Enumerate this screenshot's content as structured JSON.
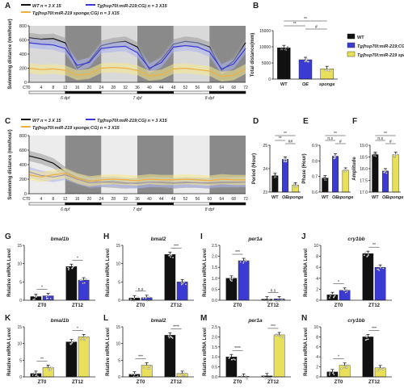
{
  "colors": {
    "wt": "#111111",
    "oe": "#3b3bd4",
    "sponge": "#e8e05a",
    "sponge_line": "#f0b040",
    "shade_light": "#d9d9d9",
    "shade_dark": "#8a8a8a"
  },
  "panel_letters": [
    "A",
    "B",
    "C",
    "D",
    "E",
    "F",
    "G",
    "H",
    "I",
    "J",
    "K",
    "L",
    "M",
    "N"
  ],
  "legend_top": {
    "wt": "WT  n = 3 X 15",
    "oe": "Tg(hsp70l:miR-219;CG)  n = 3 X15",
    "sponge": "Tg(hsp70l:miR-219 sponge;CG)  n = 3 X15"
  },
  "legend_bottom": {
    "wt": "WT  n = 3 X 15",
    "oe": "Tg(hsp70l:miR-219;CG)  n = 3 X15",
    "sponge": "Tg(hsp70l:miR-219 sponge;CG)  n = 3 X15"
  },
  "legend_B": {
    "wt": "WT",
    "oe": "Tg(hsp70l:miR-219;CG)",
    "sponge": "Tg(hsp70l:miR-219 sponge;CG)"
  },
  "ct_label": "CT",
  "time_ticks": [
    "0",
    "4",
    "8",
    "12",
    "16",
    "20",
    "24",
    "28",
    "32",
    "36",
    "40",
    "44",
    "48",
    "52",
    "56",
    "60",
    "64",
    "68",
    "72"
  ],
  "day_labels": [
    "6 dpf",
    "7 dpf",
    "8 dpf"
  ],
  "chart_data": [
    {
      "panel": "A",
      "type": "line",
      "ylabel": "Swimming distance (mm/hour)",
      "ylim": [
        0,
        800
      ],
      "yticks": [
        "0",
        "200",
        "400",
        "600",
        "800"
      ],
      "x": [
        0,
        4,
        8,
        12,
        16,
        20,
        24,
        28,
        32,
        36,
        40,
        44,
        48,
        52,
        56,
        60,
        64,
        68,
        72
      ],
      "series": [
        {
          "name": "WT",
          "values": [
            630,
            610,
            620,
            560,
            200,
            300,
            520,
            560,
            580,
            500,
            180,
            320,
            540,
            580,
            560,
            500,
            170,
            300,
            560
          ]
        },
        {
          "name": "Tg(hsp70l:miR-219;CG)",
          "values": [
            560,
            540,
            530,
            480,
            240,
            280,
            480,
            500,
            510,
            420,
            200,
            280,
            500,
            520,
            500,
            430,
            190,
            260,
            480
          ]
        },
        {
          "name": "Tg(hsp70l:miR-219 sponge;CG)",
          "values": [
            200,
            180,
            190,
            170,
            100,
            120,
            200,
            210,
            200,
            170,
            90,
            110,
            190,
            200,
            180,
            160,
            80,
            100,
            190
          ]
        }
      ]
    },
    {
      "panel": "B",
      "type": "bar",
      "ylabel": "Total distance(mm)",
      "ylim": [
        0,
        15000
      ],
      "yticks": [
        "0",
        "5000",
        "10000",
        "15000"
      ],
      "categories": [
        "WT",
        "OE",
        "sponge"
      ],
      "values": [
        9700,
        6000,
        3200
      ],
      "sig": [
        "**",
        "**",
        "#"
      ]
    },
    {
      "panel": "C",
      "type": "line",
      "ylabel": "Swimming distance (mm/hour)",
      "ylim": [
        0,
        800
      ],
      "yticks": [
        "0",
        "200",
        "400",
        "600",
        "800"
      ],
      "x": [
        0,
        4,
        8,
        12,
        16,
        20,
        24,
        28,
        32,
        36,
        40,
        44,
        48,
        52,
        56,
        60,
        64,
        68,
        72
      ],
      "series": [
        {
          "name": "WT",
          "values": [
            520,
            480,
            420,
            300,
            220,
            180,
            160,
            150,
            140,
            150,
            160,
            150,
            140,
            150,
            150,
            140,
            150,
            150,
            160
          ]
        },
        {
          "name": "Tg(hsp70l:miR-219;CG)",
          "values": [
            300,
            250,
            230,
            260,
            200,
            150,
            160,
            170,
            150,
            140,
            160,
            160,
            150,
            160,
            150,
            150,
            160,
            160,
            160
          ]
        },
        {
          "name": "Tg(hsp70l:miR-219 sponge;CG)",
          "values": [
            260,
            230,
            260,
            280,
            210,
            170,
            190,
            200,
            190,
            180,
            200,
            190,
            190,
            200,
            190,
            180,
            200,
            190,
            190
          ]
        }
      ]
    },
    {
      "panel": "D",
      "type": "bar",
      "ylabel": "Period (Hour)",
      "ylim": [
        23,
        25
      ],
      "yticks": [
        "23",
        "24",
        "25"
      ],
      "categories": [
        "WT",
        "OE",
        "sponge"
      ],
      "values": [
        23.7,
        24.4,
        23.3
      ],
      "sig": [
        "**",
        "**",
        "##"
      ]
    },
    {
      "panel": "E",
      "type": "bar",
      "ylabel": "Phase (Hour)",
      "ylim": [
        0.6,
        0.9
      ],
      "yticks": [
        "0.6",
        "0.7",
        "0.8",
        "0.9"
      ],
      "categories": [
        "WT",
        "OE",
        "sponge"
      ],
      "values": [
        0.69,
        0.83,
        0.74
      ],
      "sig": [
        "n.s",
        "**",
        "#"
      ]
    },
    {
      "panel": "F",
      "type": "bar",
      "ylabel": "Amplitude",
      "ylim": [
        17,
        19
      ],
      "yticks": [
        "17.0",
        "17.5",
        "18.0",
        "18.5",
        "19.0"
      ],
      "categories": [
        "WT",
        "OE",
        "sponge"
      ],
      "values": [
        18.6,
        17.9,
        18.6
      ],
      "sig": [
        "n.s",
        "**",
        "#"
      ]
    },
    {
      "panel": "G",
      "type": "bar",
      "title": "bmal1b",
      "ylabel": "Relative mRNA Level",
      "ylim": [
        0,
        15
      ],
      "yticks": [
        "0",
        "5",
        "10",
        "15"
      ],
      "categories": [
        "ZT0",
        "ZT12"
      ],
      "series": [
        {
          "name": "WT",
          "values": [
            1,
            9.2
          ]
        },
        {
          "name": "OE",
          "values": [
            1.2,
            5.5
          ]
        }
      ],
      "sig": [
        "*",
        "*"
      ]
    },
    {
      "panel": "H",
      "type": "bar",
      "title": "bmal2",
      "ylabel": "Relative mRNA Level",
      "ylim": [
        0,
        15
      ],
      "yticks": [
        "0",
        "5",
        "10",
        "15"
      ],
      "categories": [
        "ZT0",
        "ZT12"
      ],
      "series": [
        {
          "name": "WT",
          "values": [
            0.6,
            12.5
          ]
        },
        {
          "name": "OE",
          "values": [
            0.7,
            5
          ]
        }
      ],
      "sig": [
        "n.s",
        "***"
      ]
    },
    {
      "panel": "I",
      "type": "bar",
      "title": "per1a",
      "ylabel": "Relative mRNA Level",
      "ylim": [
        0,
        2.5
      ],
      "yticks": [
        "0.0",
        "0.5",
        "1.0",
        "1.5",
        "2.0",
        "2.5"
      ],
      "categories": [
        "ZT0",
        "ZT12"
      ],
      "series": [
        {
          "name": "WT",
          "values": [
            1,
            0.05
          ]
        },
        {
          "name": "OE",
          "values": [
            1.8,
            0.06
          ]
        }
      ],
      "sig": [
        "***",
        "n.s"
      ]
    },
    {
      "panel": "J",
      "type": "bar",
      "title": "cry1bb",
      "ylabel": "Relative mRNA Level",
      "ylim": [
        0,
        10
      ],
      "yticks": [
        "0",
        "2",
        "4",
        "6",
        "8",
        "10"
      ],
      "categories": [
        "ZT0",
        "ZT12"
      ],
      "series": [
        {
          "name": "WT",
          "values": [
            1,
            8.5
          ]
        },
        {
          "name": "OE",
          "values": [
            1.8,
            6
          ]
        }
      ],
      "sig": [
        "*",
        "**"
      ]
    },
    {
      "panel": "K",
      "type": "bar",
      "title": "bmal1b",
      "ylabel": "Relative mRNA Level",
      "ylim": [
        0,
        15
      ],
      "yticks": [
        "0",
        "5",
        "10",
        "15"
      ],
      "categories": [
        "ZT0",
        "ZT12"
      ],
      "series": [
        {
          "name": "WT",
          "values": [
            1,
            10.5
          ]
        },
        {
          "name": "sponge",
          "values": [
            2.8,
            12
          ]
        }
      ],
      "sig": [
        "**",
        "*"
      ]
    },
    {
      "panel": "L",
      "type": "bar",
      "title": "bmal2",
      "ylabel": "Relative mRNA Level",
      "ylim": [
        0,
        15
      ],
      "yticks": [
        "0",
        "5",
        "10",
        "15"
      ],
      "categories": [
        "ZT0",
        "ZT12"
      ],
      "series": [
        {
          "name": "WT",
          "values": [
            0.8,
            12.5
          ]
        },
        {
          "name": "sponge",
          "values": [
            3.5,
            1
          ]
        }
      ],
      "sig": [
        "***",
        "****"
      ]
    },
    {
      "panel": "M",
      "type": "bar",
      "title": "per1a",
      "ylabel": "Relative mRNA Level",
      "ylim": [
        0,
        2.5
      ],
      "yticks": [
        "0.0",
        "0.5",
        "1.0",
        "1.5",
        "2.0",
        "2.5"
      ],
      "categories": [
        "ZT0",
        "ZT12"
      ],
      "series": [
        {
          "name": "WT",
          "values": [
            1,
            0.05
          ]
        },
        {
          "name": "sponge",
          "values": [
            0.03,
            2.1
          ]
        }
      ],
      "sig": [
        "****",
        "***"
      ]
    },
    {
      "panel": "N",
      "type": "bar",
      "title": "cry1bb",
      "ylabel": "Relative mRNA Level",
      "ylim": [
        0,
        10
      ],
      "yticks": [
        "0",
        "2",
        "4",
        "6",
        "8",
        "10"
      ],
      "categories": [
        "ZT0",
        "ZT12"
      ],
      "series": [
        {
          "name": "WT",
          "values": [
            1,
            8
          ]
        },
        {
          "name": "sponge",
          "values": [
            2.3,
            1.8
          ]
        }
      ],
      "sig": [
        "*",
        "***"
      ]
    }
  ]
}
